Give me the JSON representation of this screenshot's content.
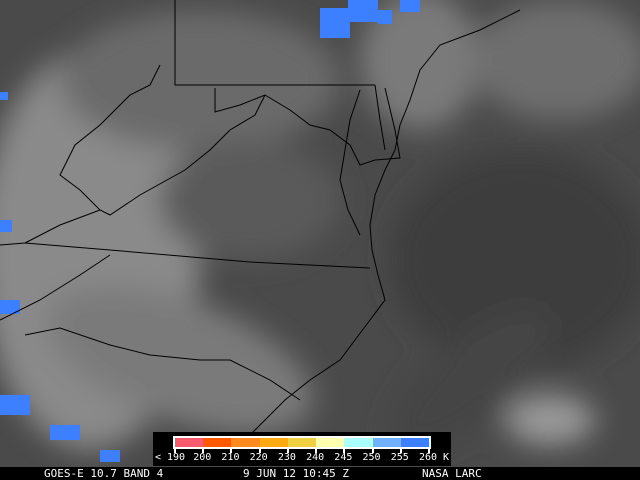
{
  "status_bar": {
    "satellite": "GOES-E 10.7 BAND 4",
    "datetime": "9 JUN 12 10:45 Z",
    "source": "NASA LARC"
  },
  "legend": {
    "labels": [
      "< 190",
      "200",
      "210",
      "220",
      "230",
      "240",
      "245",
      "250",
      "255",
      "260 K"
    ],
    "colors": [
      "#f85a6e",
      "#ff5a00",
      "#ff8a1e",
      "#ffaa10",
      "#eed040",
      "#ffffb0",
      "#aaffff",
      "#70b0ff",
      "#3c80ff"
    ]
  },
  "map_colors": {
    "land_background": "#5a5a5a",
    "ocean": "#404040",
    "borders": "#000000",
    "cold_cloud": "#3c80ff"
  }
}
